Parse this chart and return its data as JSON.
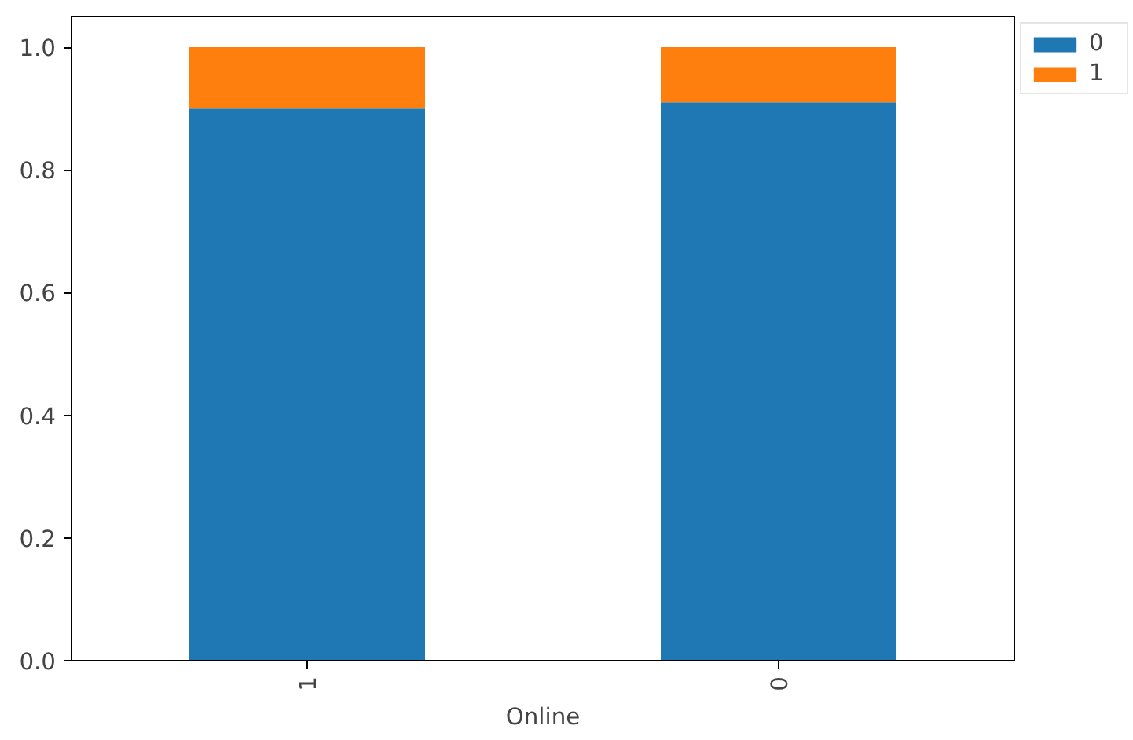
{
  "chart_data": {
    "type": "bar",
    "stacked": true,
    "xlabel": "Online",
    "categories": [
      "1",
      "0"
    ],
    "series": [
      {
        "name": "0",
        "color": "#1f77b4",
        "values": [
          0.9,
          0.91
        ]
      },
      {
        "name": "1",
        "color": "#ff7f0e",
        "values": [
          0.1,
          0.09
        ]
      }
    ],
    "ylim": [
      0,
      1.05
    ],
    "yticks": [
      {
        "value": 0,
        "label": "0.0"
      },
      {
        "value": 0.2,
        "label": "0.2"
      },
      {
        "value": 0.4,
        "label": "0.4"
      },
      {
        "value": 0.6,
        "label": "0.6"
      },
      {
        "value": 0.8,
        "label": "0.8"
      },
      {
        "value": 1,
        "label": "1.0"
      }
    ],
    "grid": false,
    "legend": "top right"
  }
}
